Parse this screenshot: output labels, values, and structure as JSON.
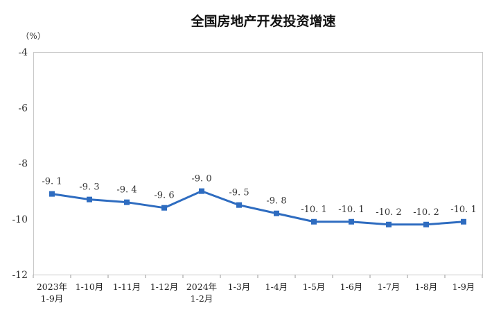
{
  "chart_data": {
    "type": "line",
    "title": "全国房地产开发投资增速",
    "unit": "（%）",
    "categories": [
      [
        "2023年",
        "1-9月"
      ],
      [
        "1-10月"
      ],
      [
        "1-11月"
      ],
      [
        "1-12月"
      ],
      [
        "2024年",
        "1-2月"
      ],
      [
        "1-3月"
      ],
      [
        "1-4月"
      ],
      [
        "1-5月"
      ],
      [
        "1-6月"
      ],
      [
        "1-7月"
      ],
      [
        "1-8月"
      ],
      [
        "1-9月"
      ]
    ],
    "values": [
      -9.1,
      -9.3,
      -9.4,
      -9.6,
      -9.0,
      -9.5,
      -9.8,
      -10.1,
      -10.1,
      -10.2,
      -10.2,
      -10.1
    ],
    "labels": [
      "-9. 1",
      "-9. 3",
      "-9. 4",
      "-9. 6",
      "-9. 0",
      "-9. 5",
      "-9. 8",
      "-10. 1",
      "-10. 1",
      "-10. 2",
      "-10. 2",
      "-10. 1"
    ],
    "ylim": [
      -12,
      -4
    ],
    "yticks": [
      -4,
      -6,
      -8,
      -10,
      -12
    ],
    "grid": false,
    "line_color": "#2e6cc0"
  }
}
